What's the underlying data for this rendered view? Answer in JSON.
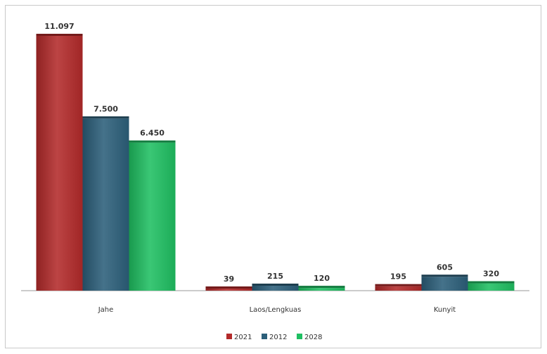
{
  "chart_data": {
    "type": "bar",
    "title": "",
    "xlabel": "",
    "ylabel": "",
    "categories": [
      "Jahe",
      "Laos/Lengkuas",
      "Kunyit"
    ],
    "series": [
      {
        "name": "2021",
        "color": "#b32a2a",
        "values": [
          11097,
          39,
          195
        ],
        "labels": [
          "11.097",
          "39",
          "195"
        ]
      },
      {
        "name": "2012",
        "color": "#2c5f7a",
        "values": [
          7500,
          215,
          605
        ],
        "labels": [
          "7.500",
          "215",
          "605"
        ]
      },
      {
        "name": "2028",
        "color": "#1fbf62",
        "values": [
          6450,
          120,
          320
        ],
        "labels": [
          "6.450",
          "120",
          "320"
        ]
      }
    ],
    "ylim": [
      0,
      11097
    ],
    "grid": false,
    "legend_position": "bottom"
  }
}
